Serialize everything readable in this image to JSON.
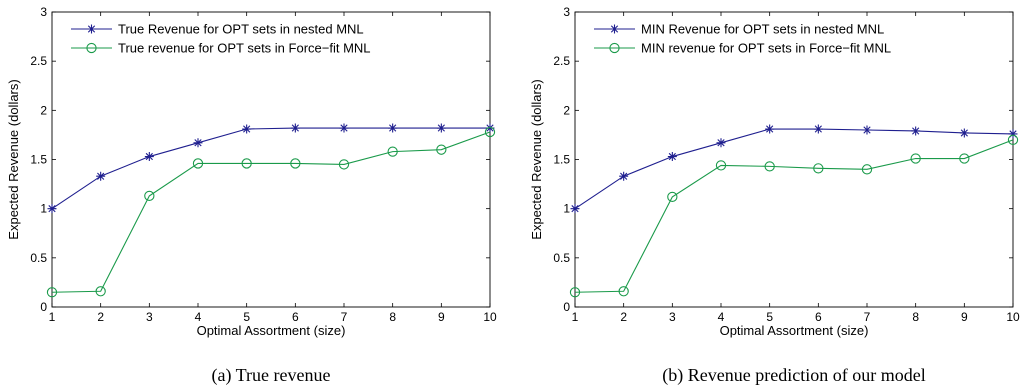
{
  "chart_data": [
    {
      "type": "line",
      "caption": "(a) True revenue",
      "xlabel": "Optimal Assortment (size)",
      "ylabel": "Expected Revenue (dollars)",
      "xlim": [
        1,
        10
      ],
      "ylim": [
        0,
        3
      ],
      "xticks": [
        "1",
        "2",
        "3",
        "4",
        "5",
        "6",
        "7",
        "8",
        "9",
        "10"
      ],
      "yticks": [
        "0",
        "0.5",
        "1",
        "1.5",
        "2",
        "2.5",
        "3"
      ],
      "grid": false,
      "legend_position": "top-left",
      "x": [
        1,
        2,
        3,
        4,
        5,
        6,
        7,
        8,
        9,
        10
      ],
      "series": [
        {
          "name": "True Revenue for OPT sets in nested MNL",
          "color": "#1f1f8f",
          "marker": "star",
          "values": [
            1.0,
            1.33,
            1.53,
            1.67,
            1.81,
            1.82,
            1.82,
            1.82,
            1.82,
            1.82
          ]
        },
        {
          "name": "True revenue for OPT sets in Force−fit MNL",
          "color": "#1a9a4a",
          "marker": "circle",
          "values": [
            0.15,
            0.16,
            1.13,
            1.46,
            1.46,
            1.46,
            1.45,
            1.58,
            1.6,
            1.78
          ]
        }
      ]
    },
    {
      "type": "line",
      "caption": "(b) Revenue prediction of our model",
      "xlabel": "Optimal Assortment (size)",
      "ylabel": "Expected Revenue (dollars)",
      "xlim": [
        1,
        10
      ],
      "ylim": [
        0,
        3
      ],
      "xticks": [
        "1",
        "2",
        "3",
        "4",
        "5",
        "6",
        "7",
        "8",
        "9",
        "10"
      ],
      "yticks": [
        "0",
        "0.5",
        "1",
        "1.5",
        "2",
        "2.5",
        "3"
      ],
      "grid": false,
      "legend_position": "top-left",
      "x": [
        1,
        2,
        3,
        4,
        5,
        6,
        7,
        8,
        9,
        10
      ],
      "series": [
        {
          "name": "MIN Revenue for OPT sets in nested MNL",
          "color": "#1f1f8f",
          "marker": "star",
          "values": [
            1.0,
            1.33,
            1.53,
            1.67,
            1.81,
            1.81,
            1.8,
            1.79,
            1.77,
            1.76
          ]
        },
        {
          "name": "MIN revenue for OPT sets in Force−fit MNL",
          "color": "#1a9a4a",
          "marker": "circle",
          "values": [
            0.15,
            0.16,
            1.12,
            1.44,
            1.43,
            1.41,
            1.4,
            1.51,
            1.51,
            1.7
          ]
        }
      ]
    }
  ]
}
